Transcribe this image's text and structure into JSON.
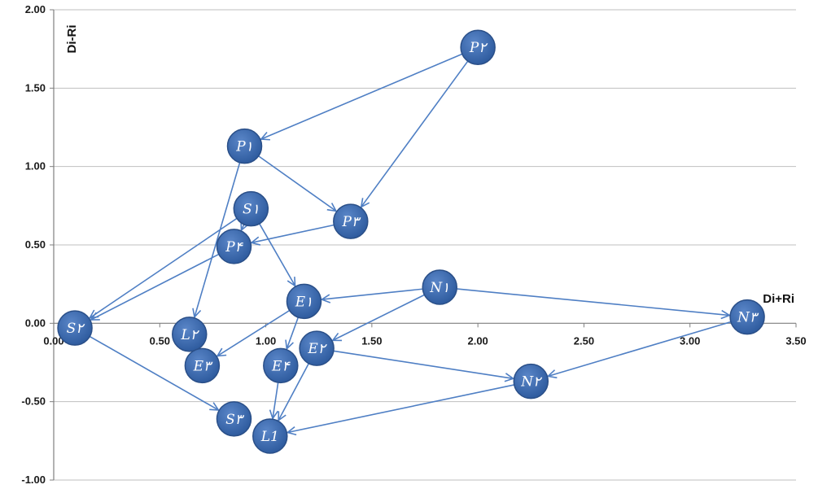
{
  "chart_data": {
    "type": "scatter",
    "xlabel": "Di+Ri",
    "ylabel": "Di-Ri",
    "xlim": [
      0,
      3.5
    ],
    "ylim": [
      -1.0,
      2.0
    ],
    "x_ticks": [
      "0.00",
      "0.50",
      "1.00",
      "1.50",
      "2.00",
      "2.50",
      "3.00",
      "3.50"
    ],
    "y_ticks": [
      "2.00",
      "1.50",
      "1.00",
      "0.50",
      "0.00",
      "-0.50",
      "-1.00"
    ],
    "x_tick_values": [
      0,
      0.5,
      1.0,
      1.5,
      2.0,
      2.5,
      3.0,
      3.5
    ],
    "y_tick_values": [
      2.0,
      1.5,
      1.0,
      0.5,
      0.0,
      -0.5,
      -1.0
    ],
    "grid": "horizontal",
    "colors": {
      "node_fill": "#3f6fb4",
      "node_stroke": "#2a4f88",
      "arrow": "#4f7fc4",
      "grid": "#bfbfbf"
    },
    "points": [
      {
        "id": "P2",
        "label": "P۲",
        "x": 2.0,
        "y": 1.76
      },
      {
        "id": "P1",
        "label": "P۱",
        "x": 0.9,
        "y": 1.13
      },
      {
        "id": "S1",
        "label": "S۱",
        "x": 0.93,
        "y": 0.73
      },
      {
        "id": "P3",
        "label": "P۳",
        "x": 1.4,
        "y": 0.65
      },
      {
        "id": "P4",
        "label": "P۴",
        "x": 0.85,
        "y": 0.49
      },
      {
        "id": "E1",
        "label": "E۱",
        "x": 1.18,
        "y": 0.14
      },
      {
        "id": "N1",
        "label": "N۱",
        "x": 1.82,
        "y": 0.23
      },
      {
        "id": "N3",
        "label": "N۳",
        "x": 3.27,
        "y": 0.04
      },
      {
        "id": "S2",
        "label": "S۲",
        "x": 0.1,
        "y": -0.03
      },
      {
        "id": "L2",
        "label": "L۲",
        "x": 0.64,
        "y": -0.07
      },
      {
        "id": "E2",
        "label": "E۲",
        "x": 1.24,
        "y": -0.16
      },
      {
        "id": "E3",
        "label": "E۳",
        "x": 0.7,
        "y": -0.27
      },
      {
        "id": "E4",
        "label": "E۴",
        "x": 1.07,
        "y": -0.27
      },
      {
        "id": "N2",
        "label": "N۲",
        "x": 2.25,
        "y": -0.37
      },
      {
        "id": "S3",
        "label": "S۳",
        "x": 0.85,
        "y": -0.61
      },
      {
        "id": "L1",
        "label": "L1",
        "x": 1.02,
        "y": -0.72
      }
    ],
    "arrows": [
      {
        "from": "P2",
        "to": "P1"
      },
      {
        "from": "P2",
        "to": "P3"
      },
      {
        "from": "P1",
        "to": "P3"
      },
      {
        "from": "P1",
        "to": "L2"
      },
      {
        "from": "S1",
        "to": "P4"
      },
      {
        "from": "S1",
        "to": "E1"
      },
      {
        "from": "S1",
        "to": "S2"
      },
      {
        "from": "P3",
        "to": "P4"
      },
      {
        "from": "P4",
        "to": "S2"
      },
      {
        "from": "N1",
        "to": "E1"
      },
      {
        "from": "N1",
        "to": "N3"
      },
      {
        "from": "N1",
        "to": "E2"
      },
      {
        "from": "N3",
        "to": "N2"
      },
      {
        "from": "E1",
        "to": "E3"
      },
      {
        "from": "E1",
        "to": "E4"
      },
      {
        "from": "E2",
        "to": "N2"
      },
      {
        "from": "E2",
        "to": "L1"
      },
      {
        "from": "E4",
        "to": "L1"
      },
      {
        "from": "S2",
        "to": "S3"
      },
      {
        "from": "N2",
        "to": "L1"
      }
    ]
  }
}
